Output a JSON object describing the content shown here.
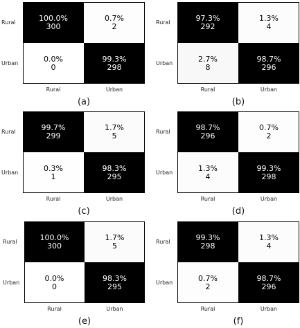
{
  "row_labels": [
    "Rural",
    "Urban"
  ],
  "col_labels": [
    "Rural",
    "Urban"
  ],
  "chart_data": [
    {
      "type": "heatmap",
      "caption": "(a)",
      "rows": [
        "Rural",
        "Urban"
      ],
      "cols": [
        "Rural",
        "Urban"
      ],
      "cells": [
        [
          {
            "pct": "100.0%",
            "count": "300",
            "value": 300
          },
          {
            "pct": "0.7%",
            "count": "2",
            "value": 2
          }
        ],
        [
          {
            "pct": "0.0%",
            "count": "0",
            "value": 0
          },
          {
            "pct": "99.3%",
            "count": "298",
            "value": 298
          }
        ]
      ]
    },
    {
      "type": "heatmap",
      "caption": "(b)",
      "rows": [
        "Rural",
        "Urban"
      ],
      "cols": [
        "Rural",
        "Urban"
      ],
      "cells": [
        [
          {
            "pct": "97.3%",
            "count": "292",
            "value": 292
          },
          {
            "pct": "1.3%",
            "count": "4",
            "value": 4
          }
        ],
        [
          {
            "pct": "2.7%",
            "count": "8",
            "value": 8
          },
          {
            "pct": "98.7%",
            "count": "296",
            "value": 296
          }
        ]
      ]
    },
    {
      "type": "heatmap",
      "caption": "(c)",
      "rows": [
        "Rural",
        "Urban"
      ],
      "cols": [
        "Rural",
        "Urban"
      ],
      "cells": [
        [
          {
            "pct": "99.7%",
            "count": "299",
            "value": 299
          },
          {
            "pct": "1.7%",
            "count": "5",
            "value": 5
          }
        ],
        [
          {
            "pct": "0.3%",
            "count": "1",
            "value": 1
          },
          {
            "pct": "98.3%",
            "count": "295",
            "value": 295
          }
        ]
      ]
    },
    {
      "type": "heatmap",
      "caption": "(d)",
      "rows": [
        "Rural",
        "Urban"
      ],
      "cols": [
        "Rural",
        "Urban"
      ],
      "cells": [
        [
          {
            "pct": "98.7%",
            "count": "296",
            "value": 296
          },
          {
            "pct": "0.7%",
            "count": "2",
            "value": 2
          }
        ],
        [
          {
            "pct": "1.3%",
            "count": "4",
            "value": 4
          },
          {
            "pct": "99.3%",
            "count": "298",
            "value": 298
          }
        ]
      ]
    },
    {
      "type": "heatmap",
      "caption": "(e)",
      "rows": [
        "Rural",
        "Urban"
      ],
      "cols": [
        "Rural",
        "Urban"
      ],
      "cells": [
        [
          {
            "pct": "100.0%",
            "count": "300",
            "value": 300
          },
          {
            "pct": "1.7%",
            "count": "5",
            "value": 5
          }
        ],
        [
          {
            "pct": "0.0%",
            "count": "0",
            "value": 0
          },
          {
            "pct": "98.3%",
            "count": "295",
            "value": 295
          }
        ]
      ]
    },
    {
      "type": "heatmap",
      "caption": "(f)",
      "rows": [
        "Rural",
        "Urban"
      ],
      "cols": [
        "Rural",
        "Urban"
      ],
      "cells": [
        [
          {
            "pct": "99.3%",
            "count": "298",
            "value": 298
          },
          {
            "pct": "1.3%",
            "count": "4",
            "value": 4
          }
        ],
        [
          {
            "pct": "0.7%",
            "count": "2",
            "value": 2
          },
          {
            "pct": "98.7%",
            "count": "296",
            "value": 296
          }
        ]
      ]
    }
  ],
  "colors": {
    "high": "#000000",
    "low": "#ffffff",
    "text_on_dark": "#ffffff",
    "text_on_light": "#000000"
  }
}
